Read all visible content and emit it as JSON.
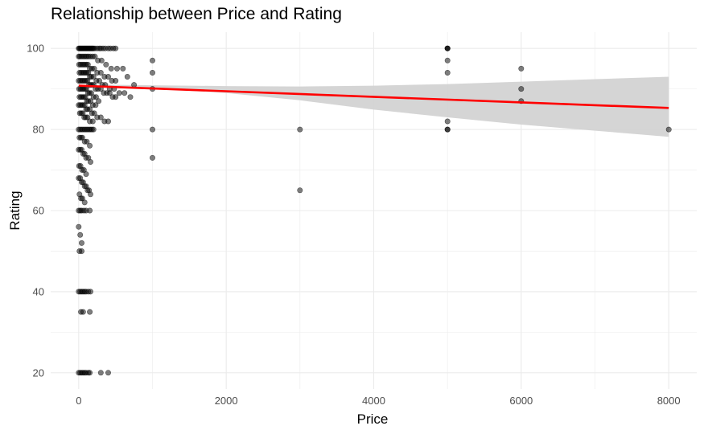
{
  "chart_data": {
    "type": "scatter",
    "title": "Relationship between Price and Rating",
    "xlabel": "Price",
    "ylabel": "Rating",
    "xlim": [
      -380,
      8380
    ],
    "ylim": [
      16,
      104
    ],
    "x_ticks": [
      0,
      2000,
      4000,
      6000,
      8000
    ],
    "y_ticks": [
      20,
      40,
      60,
      80,
      100
    ],
    "grid": true,
    "colors": {
      "points": "#000000",
      "trend": "#ff0000",
      "band": "#d3d3d3",
      "grid": "#ebebeb"
    },
    "trend_line": {
      "x": [
        0,
        8000
      ],
      "y": [
        90.8,
        85.3
      ]
    },
    "confidence_band": {
      "x": [
        0,
        1000,
        2000,
        3000,
        4000,
        5000,
        6000,
        7000,
        8000
      ],
      "upper": [
        91.1,
        90.9,
        90.7,
        90.6,
        90.8,
        91.2,
        91.8,
        92.4,
        93.0
      ],
      "lower": [
        90.5,
        90.1,
        89.0,
        87.2,
        84.9,
        83.0,
        81.2,
        79.7,
        78.2
      ]
    },
    "points": {
      "x": [
        0,
        10,
        20,
        30,
        40,
        50,
        60,
        70,
        80,
        90,
        100,
        110,
        120,
        130,
        140,
        150,
        160,
        170,
        180,
        190,
        200,
        220,
        250,
        280,
        300,
        330,
        360,
        400,
        430,
        470,
        500,
        0,
        15,
        35,
        55,
        75,
        95,
        115,
        135,
        160,
        190,
        220,
        260,
        310,
        370,
        440,
        520,
        600,
        660,
        750,
        5,
        25,
        45,
        65,
        85,
        105,
        125,
        150,
        180,
        210,
        250,
        300,
        350,
        400,
        450,
        500,
        10,
        30,
        50,
        70,
        90,
        110,
        130,
        150,
        170,
        200,
        240,
        280,
        320,
        360,
        420,
        480,
        550,
        620,
        700,
        0,
        20,
        40,
        60,
        80,
        100,
        120,
        140,
        160,
        180,
        200,
        230,
        260,
        300,
        340,
        380,
        420,
        460,
        500,
        5,
        25,
        45,
        65,
        85,
        105,
        125,
        145,
        170,
        200,
        235,
        270,
        10,
        30,
        50,
        70,
        90,
        110,
        130,
        160,
        190,
        230,
        0,
        20,
        40,
        60,
        80,
        100,
        120,
        150,
        180,
        210,
        250,
        300,
        350,
        400,
        15,
        35,
        55,
        75,
        95,
        120,
        150,
        190,
        0,
        20,
        40,
        60,
        80,
        100,
        120,
        140,
        160,
        180,
        200,
        10,
        30,
        50,
        80,
        110,
        150,
        0,
        20,
        40,
        60,
        80,
        100,
        130,
        160,
        5,
        25,
        45,
        70,
        100,
        0,
        20,
        40,
        60,
        80,
        100,
        120,
        140,
        160,
        10,
        30,
        50,
        80,
        0,
        20,
        40,
        0,
        20,
        40,
        70,
        100,
        150,
        10,
        40,
        0,
        20,
        40,
        60,
        80,
        100,
        130,
        160,
        30,
        60,
        150,
        0,
        20,
        40,
        60,
        80,
        100,
        130,
        150,
        300,
        400,
        1000,
        1000,
        1000,
        1000,
        1000,
        3000,
        3000,
        5000,
        5000,
        5000,
        5000,
        5000,
        5000,
        5000,
        5000,
        6000,
        6000,
        6000,
        8000
      ],
      "y": [
        100,
        100,
        100,
        100,
        100,
        100,
        100,
        100,
        100,
        100,
        100,
        100,
        100,
        100,
        100,
        100,
        100,
        100,
        100,
        100,
        100,
        100,
        100,
        100,
        100,
        100,
        100,
        100,
        100,
        100,
        100,
        98,
        98,
        98,
        98,
        98,
        98,
        98,
        98,
        98,
        98,
        98,
        97,
        97,
        96,
        95,
        95,
        95,
        93,
        91,
        96,
        96,
        96,
        96,
        96,
        96,
        96,
        95,
        95,
        95,
        94,
        94,
        93,
        93,
        92,
        92,
        94,
        94,
        94,
        94,
        94,
        94,
        94,
        93,
        93,
        93,
        92,
        92,
        91,
        91,
        90,
        90,
        89,
        89,
        88,
        92,
        92,
        92,
        92,
        92,
        92,
        92,
        91,
        91,
        91,
        91,
        90,
        90,
        90,
        89,
        89,
        89,
        88,
        88,
        90,
        90,
        90,
        90,
        90,
        90,
        89,
        89,
        89,
        88,
        88,
        87,
        88,
        88,
        88,
        88,
        88,
        87,
        87,
        87,
        86,
        86,
        86,
        86,
        86,
        86,
        86,
        85,
        85,
        85,
        84,
        84,
        83,
        83,
        82,
        82,
        84,
        84,
        84,
        83,
        83,
        83,
        82,
        82,
        80,
        80,
        80,
        80,
        80,
        80,
        80,
        80,
        80,
        80,
        80,
        78,
        78,
        78,
        77,
        77,
        76,
        75,
        75,
        75,
        74,
        74,
        73,
        73,
        72,
        71,
        71,
        70,
        70,
        69,
        68,
        68,
        67,
        67,
        66,
        66,
        65,
        65,
        64,
        64,
        63,
        63,
        62,
        56,
        54,
        52,
        60,
        60,
        60,
        60,
        60,
        60,
        50,
        50,
        40,
        40,
        40,
        40,
        40,
        40,
        40,
        40,
        35,
        35,
        35,
        20,
        20,
        20,
        20,
        20,
        20,
        20,
        20,
        20,
        20,
        97,
        94,
        90,
        80,
        73,
        80,
        65,
        100,
        100,
        100,
        97,
        94,
        82,
        80,
        80,
        95,
        90,
        87,
        80
      ]
    }
  }
}
